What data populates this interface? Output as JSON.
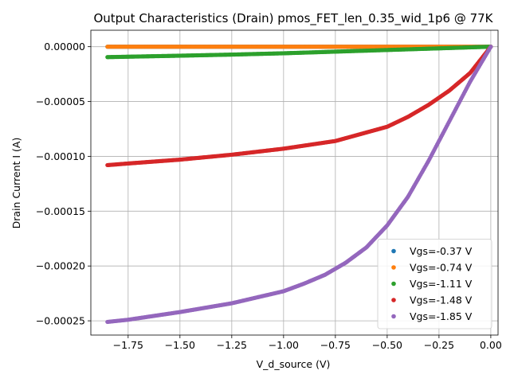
{
  "chart_data": {
    "type": "scatter",
    "title": "Output Characteristics (Drain) pmos_FET_len_0.35_wid_1p6 @ 77K",
    "xlabel": "V_d_source (V)",
    "ylabel": "Drain Current I (A)",
    "xlim": [
      -1.93,
      0.035
    ],
    "ylim": [
      -0.000263,
      1.5e-05
    ],
    "x_ticks": [
      -1.75,
      -1.5,
      -1.25,
      -1.0,
      -0.75,
      -0.5,
      -0.25,
      0.0
    ],
    "x_tick_labels": [
      "−1.75",
      "−1.50",
      "−1.25",
      "−1.00",
      "−0.75",
      "−0.50",
      "−0.25",
      "0.00"
    ],
    "y_ticks": [
      0.0,
      -5e-05,
      -0.0001,
      -0.00015,
      -0.0002,
      -0.00025
    ],
    "y_tick_labels": [
      "0.00000",
      "−0.00005",
      "−0.00010",
      "−0.00015",
      "−0.00020",
      "−0.00025"
    ],
    "grid": true,
    "legend_position": "lower-right",
    "x_range": [
      -1.85,
      0.0
    ],
    "series": [
      {
        "name": "Vgs=-0.37 V",
        "color": "#1f77b4",
        "points": [
          [
            -1.85,
            0.0
          ],
          [
            -1.5,
            0.0
          ],
          [
            -1.0,
            0.0
          ],
          [
            -0.5,
            0.0
          ],
          [
            0.0,
            0.0
          ]
        ]
      },
      {
        "name": "Vgs=-0.74 V",
        "color": "#ff7f0e",
        "points": [
          [
            -1.85,
            0.0
          ],
          [
            -1.5,
            0.0
          ],
          [
            -1.0,
            0.0
          ],
          [
            -0.5,
            0.0
          ],
          [
            0.0,
            0.0
          ]
        ]
      },
      {
        "name": "Vgs=-1.11 V",
        "color": "#2ca02c",
        "points": [
          [
            -1.85,
            -9.5e-06
          ],
          [
            -1.5,
            -8.2e-06
          ],
          [
            -1.25,
            -7.2e-06
          ],
          [
            -1.0,
            -6e-06
          ],
          [
            -0.75,
            -4.5e-06
          ],
          [
            -0.5,
            -3e-06
          ],
          [
            -0.25,
            -1.5e-06
          ],
          [
            0.0,
            0.0
          ]
        ]
      },
      {
        "name": "Vgs=-1.48 V",
        "color": "#d62728",
        "points": [
          [
            -1.85,
            -0.000108
          ],
          [
            -1.75,
            -0.0001065
          ],
          [
            -1.5,
            -0.000103
          ],
          [
            -1.25,
            -9.85e-05
          ],
          [
            -1.0,
            -9.3e-05
          ],
          [
            -0.75,
            -8.6e-05
          ],
          [
            -0.5,
            -7.3e-05
          ],
          [
            -0.4,
            -6.4e-05
          ],
          [
            -0.3,
            -5.3e-05
          ],
          [
            -0.2,
            -4e-05
          ],
          [
            -0.1,
            -2.4e-05
          ],
          [
            -0.05,
            -1.2e-05
          ],
          [
            0.0,
            0.0
          ]
        ]
      },
      {
        "name": "Vgs=-1.85 V",
        "color": "#9467bd",
        "points": [
          [
            -1.85,
            -0.000251
          ],
          [
            -1.75,
            -0.000249
          ],
          [
            -1.5,
            -0.000242
          ],
          [
            -1.25,
            -0.000234
          ],
          [
            -1.0,
            -0.000223
          ],
          [
            -0.9,
            -0.000216
          ],
          [
            -0.8,
            -0.000208
          ],
          [
            -0.7,
            -0.000197
          ],
          [
            -0.6,
            -0.000183
          ],
          [
            -0.5,
            -0.000163
          ],
          [
            -0.4,
            -0.000137
          ],
          [
            -0.3,
            -0.000104
          ],
          [
            -0.2,
            -6.8e-05
          ],
          [
            -0.1,
            -3.2e-05
          ],
          [
            -0.05,
            -1.6e-05
          ],
          [
            0.0,
            0.0
          ]
        ]
      }
    ]
  }
}
